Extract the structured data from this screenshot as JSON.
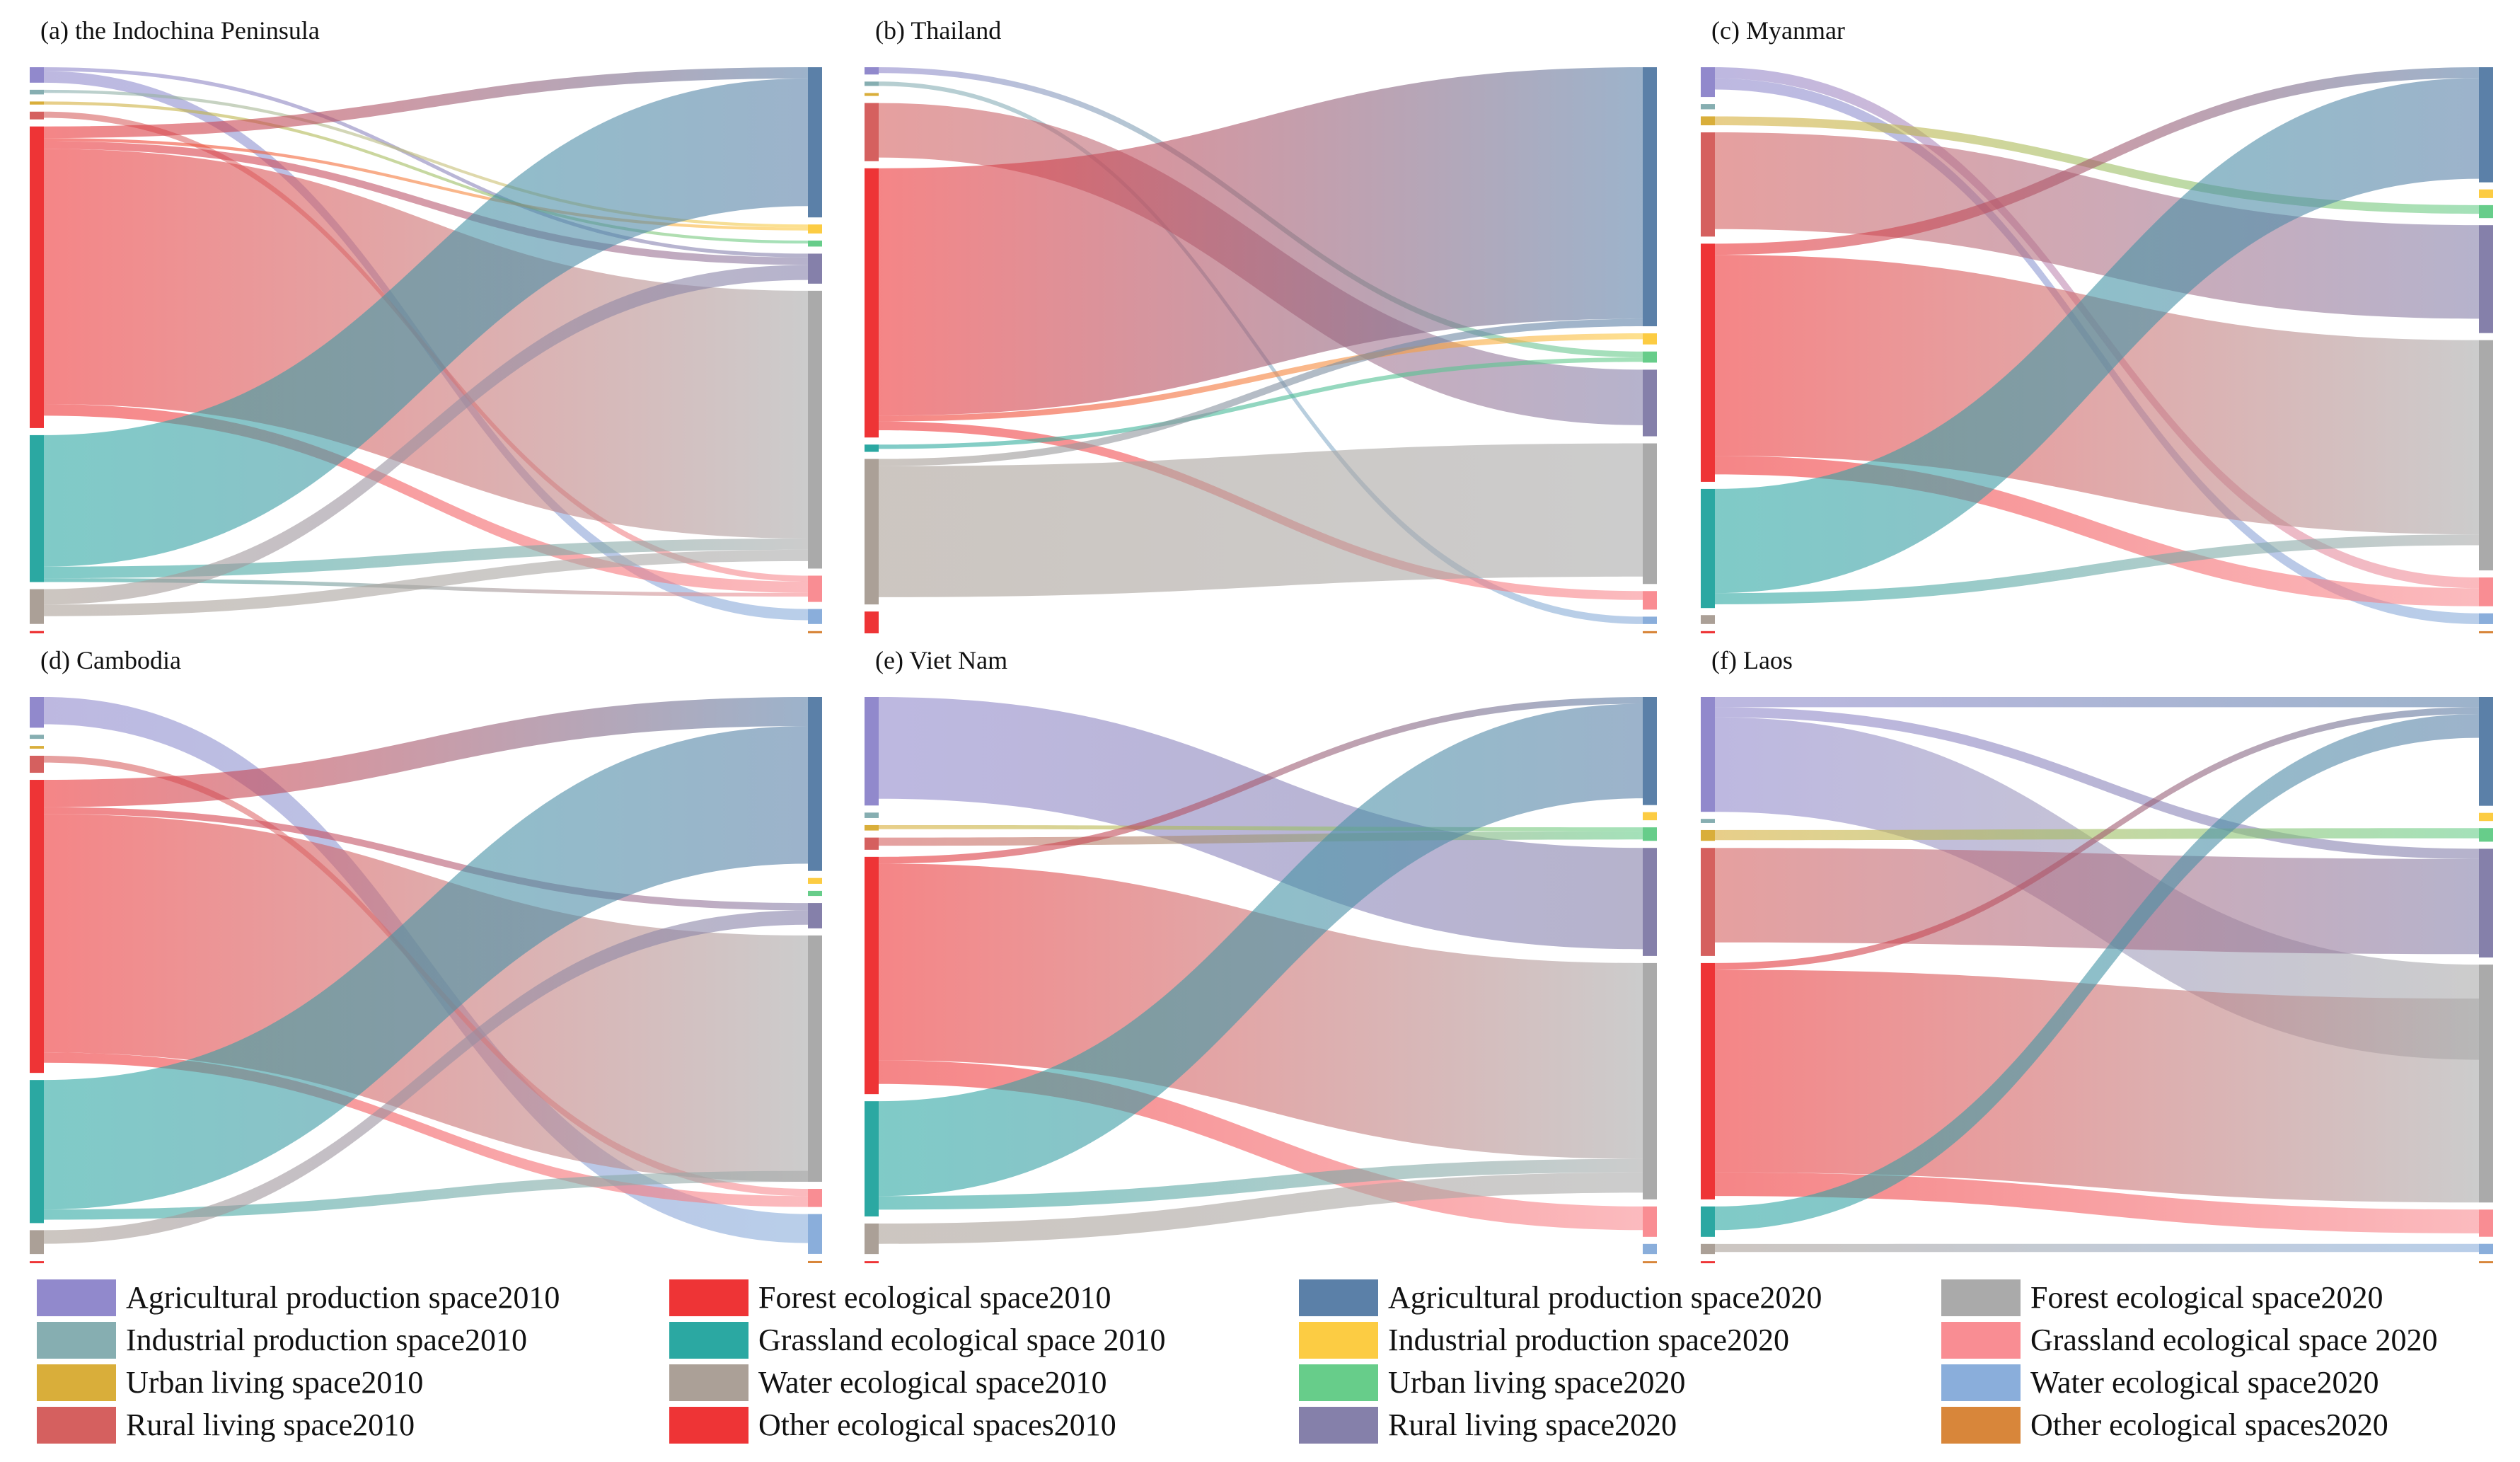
{
  "figure": {
    "categories_2010": [
      "Agricultural production space2010",
      "Industrial production space2010",
      "Urban living space2010",
      "Rural living space2010",
      "Forest ecological space2010",
      "Grassland ecological space 2010",
      "Water ecological space2010",
      "Other ecological spaces2010"
    ],
    "categories_2020": [
      "Agricultural production space2020",
      "Industrial production space2020",
      "Urban living space2020",
      "Rural living space2020",
      "Forest ecological space2020",
      "Grassland ecological space 2020",
      "Water ecological space2020",
      "Other ecological spaces2020"
    ]
  },
  "legend": {
    "items": [
      {
        "label": "Agricultural production space2010",
        "color": "#9189cc"
      },
      {
        "label": "Industrial production space2010",
        "color": "#86aeb1"
      },
      {
        "label": "Urban living space2010",
        "color": "#d9ae3a"
      },
      {
        "label": "Rural living space2010",
        "color": "#d5605f"
      },
      {
        "label": "Forest ecological space2010",
        "color": "#ee3436"
      },
      {
        "label": "Grassland ecological space 2010",
        "color": "#2ba8a2"
      },
      {
        "label": "Water ecological space2010",
        "color": "#aba097"
      },
      {
        "label": "Other ecological spaces2010",
        "color": "#ee3436"
      },
      {
        "label": "Agricultural production space2020",
        "color": "#5b80a8"
      },
      {
        "label": "Industrial production space2020",
        "color": "#fccc43"
      },
      {
        "label": "Urban living space2020",
        "color": "#67cd8a"
      },
      {
        "label": "Rural living space2020",
        "color": "#8580aa"
      },
      {
        "label": "Forest ecological space2020",
        "color": "#aaaaaa"
      },
      {
        "label": "Grassland ecological space 2020",
        "color": "#f98d93"
      },
      {
        "label": "Water ecological space2020",
        "color": "#8aaedb"
      },
      {
        "label": "Other ecological spaces2020",
        "color": "#d8863a"
      }
    ]
  },
  "chart_data": [
    {
      "type": "sankey",
      "title": "(a) the Indochina Peninsula",
      "source_values": [
        2.0,
        0.6,
        0.4,
        1.0,
        39.0,
        19.0,
        4.5,
        0.3
      ],
      "target_values": [
        20.0,
        1.2,
        0.8,
        4.0,
        37.0,
        3.5,
        2.0,
        0.3
      ],
      "links": [
        {
          "source": "Forest ecological space2010",
          "target": "Agricultural production space2020",
          "value": 1.5
        },
        {
          "source": "Forest ecological space2010",
          "target": "Forest ecological space2020",
          "value": 33.0
        },
        {
          "source": "Forest ecological space2010",
          "target": "Grassland ecological space 2020",
          "value": 1.5
        },
        {
          "source": "Forest ecological space2010",
          "target": "Rural living space2020",
          "value": 1.0
        },
        {
          "source": "Forest ecological space2010",
          "target": "Industrial production space2020",
          "value": 0.4
        },
        {
          "source": "Grassland ecological space 2010",
          "target": "Agricultural production space2020",
          "value": 17.0
        },
        {
          "source": "Grassland ecological space 2010",
          "target": "Forest ecological space2020",
          "value": 1.5
        },
        {
          "source": "Grassland ecological space 2010",
          "target": "Grassland ecological space 2020",
          "value": 0.5
        },
        {
          "source": "Agricultural production space2010",
          "target": "Water ecological space2020",
          "value": 1.5
        },
        {
          "source": "Agricultural production space2010",
          "target": "Rural living space2020",
          "value": 0.5
        },
        {
          "source": "Water ecological space2010",
          "target": "Rural living space2020",
          "value": 2.0
        },
        {
          "source": "Water ecological space2010",
          "target": "Forest ecological space2020",
          "value": 1.5
        },
        {
          "source": "Rural living space2010",
          "target": "Grassland ecological space 2020",
          "value": 0.8
        },
        {
          "source": "Urban living space2010",
          "target": "Urban living space2020",
          "value": 0.4
        },
        {
          "source": "Industrial production space2010",
          "target": "Industrial production space2020",
          "value": 0.4
        }
      ]
    },
    {
      "type": "sankey",
      "title": "(b) Thailand",
      "source_values": [
        1.0,
        0.6,
        0.4,
        8.0,
        37.0,
        1.0,
        20.0,
        3.0
      ],
      "target_values": [
        35.0,
        1.5,
        1.5,
        9.0,
        19.0,
        2.5,
        1.0,
        0.3
      ],
      "links": [
        {
          "source": "Forest ecological space2010",
          "target": "Agricultural production space2020",
          "value": 34.0
        },
        {
          "source": "Forest ecological space2010",
          "target": "Industrial production space2020",
          "value": 0.8
        },
        {
          "source": "Forest ecological space2010",
          "target": "Grassland ecological space 2020",
          "value": 1.2
        },
        {
          "source": "Water ecological space2010",
          "target": "Forest ecological space2020",
          "value": 18.0
        },
        {
          "source": "Water ecological space2010",
          "target": "Agricultural production space2020",
          "value": 1.0
        },
        {
          "source": "Rural living space2010",
          "target": "Rural living space2020",
          "value": 7.5
        },
        {
          "source": "Industrial production space2010",
          "target": "Water ecological space2020",
          "value": 2.5
        },
        {
          "source": "Agricultural production space2010",
          "target": "Urban living space2020",
          "value": 0.8
        },
        {
          "source": "Grassland ecological space 2010",
          "target": "Urban living space2020",
          "value": 0.6
        }
      ]
    },
    {
      "type": "sankey",
      "title": "(c) Myanmar",
      "source_values": [
        4.0,
        0.7,
        1.2,
        14.0,
        32.0,
        16.0,
        1.2,
        0.3
      ],
      "target_values": [
        16.0,
        1.2,
        1.8,
        15.0,
        32.0,
        4.0,
        1.5,
        0.3
      ],
      "links": [
        {
          "source": "Forest ecological space2010",
          "target": "Forest ecological space2020",
          "value": 27.0
        },
        {
          "source": "Forest ecological space2010",
          "target": "Agricultural production space2020",
          "value": 1.5
        },
        {
          "source": "Forest ecological space2010",
          "target": "Grassland ecological space 2020",
          "value": 2.5
        },
        {
          "source": "Grassland ecological space 2010",
          "target": "Agricultural production space2020",
          "value": 14.0
        },
        {
          "source": "Grassland ecological space 2010",
          "target": "Forest ecological space2020",
          "value": 1.5
        },
        {
          "source": "Rural living space2010",
          "target": "Rural living space2020",
          "value": 13.0
        },
        {
          "source": "Urban living space2010",
          "target": "Urban living space2020",
          "value": 1.2
        },
        {
          "source": "Agricultural production space2010",
          "target": "Grassland ecological space 2020",
          "value": 1.5
        },
        {
          "source": "Agricultural production space2010",
          "target": "Water ecological space2020",
          "value": 1.5
        }
      ]
    },
    {
      "type": "sankey",
      "title": "(d) Cambodia",
      "source_values": [
        4.5,
        0.6,
        0.4,
        2.5,
        43.0,
        21.0,
        3.5,
        0.3
      ],
      "target_values": [
        24.0,
        0.8,
        0.7,
        3.5,
        34.0,
        2.5,
        5.5,
        0.3
      ],
      "links": [
        {
          "source": "Forest ecological space2010",
          "target": "Agricultural production space2020",
          "value": 4.0
        },
        {
          "source": "Forest ecological space2010",
          "target": "Forest ecological space2020",
          "value": 35.0
        },
        {
          "source": "Forest ecological space2010",
          "target": "Grassland ecological space 2020",
          "value": 1.5
        },
        {
          "source": "Forest ecological space2010",
          "target": "Rural living space2020",
          "value": 1.0
        },
        {
          "source": "Grassland ecological space 2010",
          "target": "Agricultural production space2020",
          "value": 19.0
        },
        {
          "source": "Grassland ecological space 2010",
          "target": "Forest ecological space2020",
          "value": 1.5
        },
        {
          "source": "Agricultural production space2010",
          "target": "Water ecological space2020",
          "value": 4.0
        },
        {
          "source": "Water ecological space2010",
          "target": "Rural living space2020",
          "value": 2.0
        },
        {
          "source": "Rural living space2010",
          "target": "Grassland ecological space 2020",
          "value": 1.0
        }
      ]
    },
    {
      "type": "sankey",
      "title": "(e) Viet Nam",
      "source_values": [
        16.0,
        0.8,
        0.8,
        1.8,
        35.0,
        17.0,
        4.5,
        0.3
      ],
      "target_values": [
        16.0,
        1.2,
        2.0,
        16.0,
        35.0,
        4.5,
        1.5,
        0.3
      ],
      "links": [
        {
          "source": "Forest ecological space2010",
          "target": "Forest ecological space2020",
          "value": 29.0
        },
        {
          "source": "Forest ecological space2010",
          "target": "Grassland ecological space 2020",
          "value": 3.5
        },
        {
          "source": "Forest ecological space2010",
          "target": "Agricultural production space2020",
          "value": 1.0
        },
        {
          "source": "Grassland ecological space 2010",
          "target": "Agricultural production space2020",
          "value": 14.0
        },
        {
          "source": "Grassland ecological space 2010",
          "target": "Forest ecological space2020",
          "value": 2.0
        },
        {
          "source": "Agricultural production space2010",
          "target": "Rural living space2020",
          "value": 15.0
        },
        {
          "source": "Water ecological space2010",
          "target": "Forest ecological space2020",
          "value": 3.0
        },
        {
          "source": "Rural living space2010",
          "target": "Urban living space2020",
          "value": 1.2
        },
        {
          "source": "Urban living space2010",
          "target": "Urban living space2020",
          "value": 0.6
        }
      ]
    },
    {
      "type": "sankey",
      "title": "(f) Laos",
      "source_values": [
        17.0,
        0.6,
        1.6,
        16.0,
        35.0,
        4.5,
        1.5,
        0.3
      ],
      "target_values": [
        16.0,
        1.2,
        2.0,
        16.0,
        35.0,
        4.0,
        1.5,
        0.3
      ],
      "links": [
        {
          "source": "Forest ecological space2010",
          "target": "Forest ecological space2020",
          "value": 30.0
        },
        {
          "source": "Forest ecological space2010",
          "target": "Grassland ecological space 2020",
          "value": 3.5
        },
        {
          "source": "Forest ecological space2010",
          "target": "Agricultural production space2020",
          "value": 1.0
        },
        {
          "source": "Agricultural production space2010",
          "target": "Agricultural production space2020",
          "value": 1.5
        },
        {
          "source": "Agricultural production space2010",
          "target": "Rural living space2020",
          "value": 1.5
        },
        {
          "source": "Agricultural production space2010",
          "target": "Forest ecological space2020",
          "value": 14.0
        },
        {
          "source": "Rural living space2010",
          "target": "Rural living space2020",
          "value": 14.0
        },
        {
          "source": "Grassland ecological space 2010",
          "target": "Agricultural production space2020",
          "value": 3.5
        },
        {
          "source": "Urban living space2010",
          "target": "Urban living space2020",
          "value": 1.5
        },
        {
          "source": "Water ecological space2010",
          "target": "Water ecological space2020",
          "value": 1.2
        }
      ]
    }
  ]
}
